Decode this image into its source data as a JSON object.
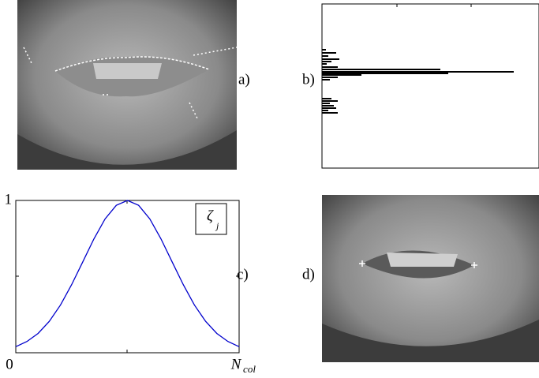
{
  "chart_data": [
    {
      "type": "image",
      "label": "a)"
    },
    {
      "type": "bar",
      "label": "b)",
      "orientation": "horizontal",
      "color": "#000000",
      "rows": [
        58,
        62,
        66,
        70,
        73,
        76,
        80,
        83,
        86,
        88,
        90,
        93,
        96,
        120,
        123,
        126,
        129,
        132,
        135,
        138
      ],
      "values": [
        5,
        18,
        8,
        22,
        12,
        6,
        20,
        150,
        243,
        160,
        50,
        20,
        10,
        12,
        20,
        10,
        15,
        18,
        8,
        20
      ],
      "xlim": [
        0,
        275
      ],
      "ylim": [
        0,
        208
      ]
    },
    {
      "type": "line",
      "label": "c)",
      "color": "#0000cc",
      "x": [
        0,
        0.05,
        0.1,
        0.15,
        0.2,
        0.25,
        0.3,
        0.35,
        0.4,
        0.45,
        0.5,
        0.55,
        0.6,
        0.65,
        0.7,
        0.75,
        0.8,
        0.85,
        0.9,
        0.95,
        1
      ],
      "values": [
        0.04,
        0.074,
        0.127,
        0.206,
        0.313,
        0.447,
        0.597,
        0.748,
        0.879,
        0.968,
        1,
        0.968,
        0.879,
        0.748,
        0.597,
        0.447,
        0.313,
        0.206,
        0.127,
        0.074,
        0.04
      ],
      "xlim": [
        0,
        1
      ],
      "ylim": [
        0,
        1
      ],
      "xticks": [
        0,
        {
          "value": 1,
          "label": "N",
          "sub": "col"
        }
      ],
      "yticks": [
        1
      ],
      "legend": {
        "label": "ζ",
        "sub": "j"
      }
    },
    {
      "type": "image",
      "label": "d)"
    }
  ]
}
